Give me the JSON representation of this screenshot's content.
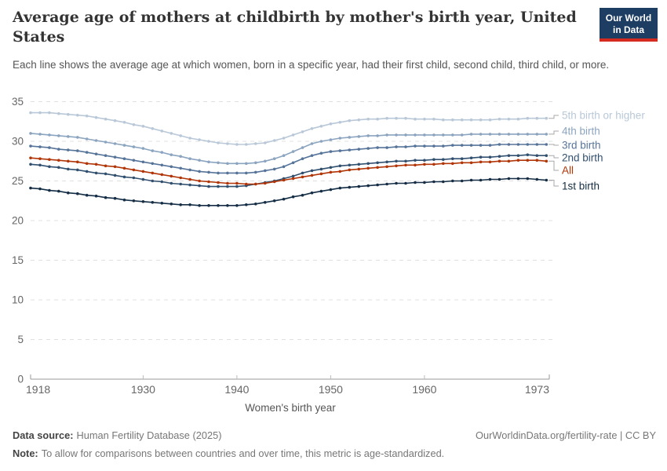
{
  "header": {
    "title": "Average age of mothers at childbirth by mother's birth year, United States",
    "subtitle": "Each line shows the average age at which women, born in a specific year, had their first child, second child, third child, or more."
  },
  "logo": {
    "line1": "Our World",
    "line2": "in Data",
    "bg_color": "#1d3d63",
    "bar_color": "#d42a20"
  },
  "footer": {
    "data_source_label": "Data source:",
    "data_source": "Human Fertility Database (2025)",
    "attribution": "OurWorldinData.org/fertility-rate | CC BY",
    "note_label": "Note:",
    "note": "To allow for comparisons between countries and over time, this metric is age-standardized."
  },
  "chart_data": {
    "type": "line",
    "title": "Average age of mothers at childbirth by mother's birth year, United States",
    "xlabel": "Women's birth year",
    "ylabel": "",
    "ylim": [
      0,
      35
    ],
    "yticks": [
      0,
      5,
      10,
      15,
      20,
      25,
      30,
      35
    ],
    "xticks": [
      1918,
      1930,
      1940,
      1950,
      1960,
      1973
    ],
    "grid": "dashed-horizontal",
    "legend_position": "right",
    "x": [
      1918,
      1919,
      1920,
      1921,
      1922,
      1923,
      1924,
      1925,
      1926,
      1927,
      1928,
      1929,
      1930,
      1931,
      1932,
      1933,
      1934,
      1935,
      1936,
      1937,
      1938,
      1939,
      1940,
      1941,
      1942,
      1943,
      1944,
      1945,
      1946,
      1947,
      1948,
      1949,
      1950,
      1951,
      1952,
      1953,
      1954,
      1955,
      1956,
      1957,
      1958,
      1959,
      1960,
      1961,
      1962,
      1963,
      1964,
      1965,
      1966,
      1967,
      1968,
      1969,
      1970,
      1971,
      1972,
      1973
    ],
    "series": [
      {
        "name": "5th birth or higher",
        "color": "#b9c8d8",
        "values": [
          33.6,
          33.6,
          33.6,
          33.5,
          33.4,
          33.3,
          33.2,
          33.0,
          32.8,
          32.6,
          32.4,
          32.1,
          31.9,
          31.6,
          31.3,
          31.0,
          30.7,
          30.4,
          30.2,
          30.0,
          29.8,
          29.7,
          29.6,
          29.6,
          29.7,
          29.8,
          30.1,
          30.4,
          30.8,
          31.2,
          31.6,
          31.9,
          32.2,
          32.4,
          32.6,
          32.7,
          32.8,
          32.8,
          32.9,
          32.9,
          32.9,
          32.8,
          32.8,
          32.8,
          32.7,
          32.7,
          32.7,
          32.7,
          32.7,
          32.7,
          32.8,
          32.8,
          32.8,
          32.9,
          32.9,
          32.9
        ]
      },
      {
        "name": "4th birth",
        "color": "#8ba4bf",
        "values": [
          31.0,
          30.9,
          30.8,
          30.7,
          30.6,
          30.5,
          30.3,
          30.1,
          29.9,
          29.7,
          29.5,
          29.3,
          29.1,
          28.8,
          28.6,
          28.3,
          28.1,
          27.8,
          27.6,
          27.4,
          27.3,
          27.2,
          27.2,
          27.2,
          27.3,
          27.5,
          27.8,
          28.2,
          28.7,
          29.2,
          29.7,
          30.0,
          30.2,
          30.4,
          30.5,
          30.6,
          30.7,
          30.7,
          30.8,
          30.8,
          30.8,
          30.8,
          30.8,
          30.8,
          30.8,
          30.8,
          30.8,
          30.9,
          30.9,
          30.9,
          30.9,
          30.9,
          30.9,
          30.9,
          30.9,
          30.9
        ]
      },
      {
        "name": "3rd birth",
        "color": "#56749a",
        "values": [
          29.4,
          29.3,
          29.2,
          29.0,
          28.9,
          28.8,
          28.6,
          28.4,
          28.2,
          28.0,
          27.8,
          27.6,
          27.4,
          27.2,
          27.0,
          26.8,
          26.6,
          26.4,
          26.2,
          26.1,
          26.0,
          26.0,
          26.0,
          26.0,
          26.1,
          26.3,
          26.5,
          26.8,
          27.3,
          27.8,
          28.2,
          28.5,
          28.7,
          28.8,
          28.9,
          29.0,
          29.1,
          29.2,
          29.2,
          29.3,
          29.3,
          29.4,
          29.4,
          29.4,
          29.4,
          29.5,
          29.5,
          29.5,
          29.5,
          29.5,
          29.6,
          29.6,
          29.6,
          29.6,
          29.6,
          29.6
        ]
      },
      {
        "name": "2nd birth",
        "color": "#31506f",
        "values": [
          27.1,
          27.0,
          26.8,
          26.7,
          26.5,
          26.4,
          26.2,
          26.0,
          25.9,
          25.7,
          25.5,
          25.4,
          25.2,
          25.0,
          24.9,
          24.7,
          24.6,
          24.5,
          24.4,
          24.3,
          24.3,
          24.3,
          24.3,
          24.4,
          24.6,
          24.8,
          25.0,
          25.3,
          25.6,
          26.0,
          26.3,
          26.5,
          26.7,
          26.9,
          27.0,
          27.1,
          27.2,
          27.3,
          27.4,
          27.5,
          27.5,
          27.6,
          27.6,
          27.7,
          27.7,
          27.8,
          27.8,
          27.9,
          28.0,
          28.0,
          28.1,
          28.2,
          28.2,
          28.3,
          28.2,
          28.2
        ]
      },
      {
        "name": "All",
        "color": "#b13507",
        "values": [
          27.9,
          27.8,
          27.7,
          27.6,
          27.5,
          27.4,
          27.2,
          27.1,
          26.9,
          26.8,
          26.6,
          26.4,
          26.2,
          26.0,
          25.8,
          25.6,
          25.4,
          25.2,
          25.0,
          24.9,
          24.8,
          24.7,
          24.7,
          24.6,
          24.6,
          24.7,
          24.9,
          25.1,
          25.3,
          25.5,
          25.7,
          25.9,
          26.1,
          26.2,
          26.4,
          26.5,
          26.6,
          26.7,
          26.8,
          26.9,
          27.0,
          27.0,
          27.1,
          27.1,
          27.2,
          27.2,
          27.3,
          27.3,
          27.4,
          27.4,
          27.5,
          27.5,
          27.6,
          27.6,
          27.6,
          27.5
        ]
      },
      {
        "name": "1st birth",
        "color": "#152e46",
        "values": [
          24.1,
          24.0,
          23.8,
          23.7,
          23.5,
          23.4,
          23.2,
          23.1,
          22.9,
          22.8,
          22.6,
          22.5,
          22.4,
          22.3,
          22.2,
          22.1,
          22.0,
          22.0,
          21.9,
          21.9,
          21.9,
          21.9,
          21.9,
          22.0,
          22.1,
          22.3,
          22.5,
          22.7,
          23.0,
          23.2,
          23.5,
          23.7,
          23.9,
          24.1,
          24.2,
          24.3,
          24.4,
          24.5,
          24.6,
          24.7,
          24.7,
          24.8,
          24.8,
          24.9,
          24.9,
          25.0,
          25.0,
          25.1,
          25.1,
          25.2,
          25.2,
          25.3,
          25.3,
          25.3,
          25.2,
          25.1
        ]
      }
    ]
  }
}
